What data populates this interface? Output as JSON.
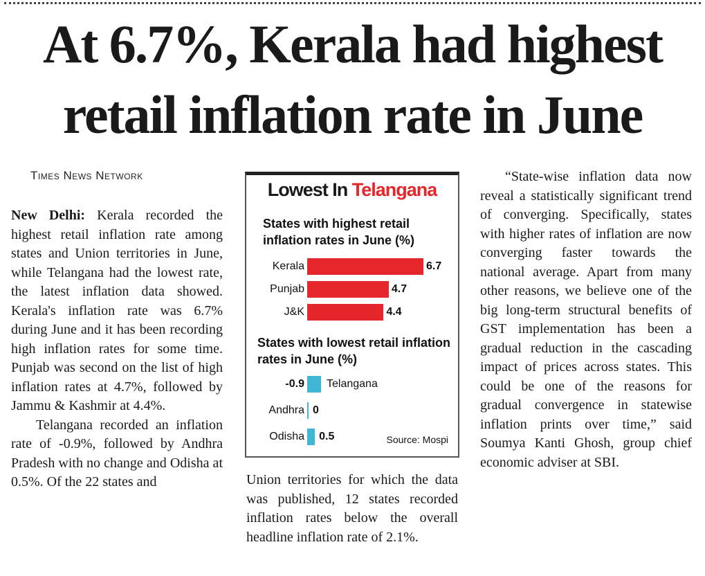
{
  "headline": {
    "line1": "At 6.7%, Kerala had highest",
    "line2": "retail inflation rate in June"
  },
  "byline": "Times News Network",
  "article": {
    "dateline": "New Delhi:",
    "col1_p1": "Kerala recorded the highest retail inflation rate among states and Union territories in June, while Telangana had the lowest rate, the latest inflation data showed. Kerala's inflation rate was 6.7% during June and it has been recording high inflation rates for some time. Punjab was second on the list of high inflation rates at 4.7%, followed by Jammu & Kashmir at 4.4%.",
    "col1_p2": "Telangana recorded an inflation rate of -0.9%, followed by Andhra Pradesh with no change and Odisha at 0.5%. Of the 22 states and",
    "col2_p1": "Union territories for which the data was published, 12 states recorded inflation rates below the overall headline inflation rate of 2.1%.",
    "col3_p1": "“State-wise inflation data now reveal a statistically significant trend of converging. Specifically, states with higher rates of inflation are now converging faster towards the national average. Apart from many other reasons, we believe one of the big long-term structural benefits of GST implementation has been a gradual reduction in the cascading impact of prices across states. This could be one of the reasons for gradual convergence in statewise inflation prints over time,” said Soumya Kanti Ghosh, group chief economic adviser at SBI."
  },
  "chart_data": {
    "type": "bar",
    "title_part1": "Lowest In ",
    "title_part2": "Telangana",
    "source": "Source: Mospi",
    "highest": {
      "subtitle": "States with highest retail inflation rates in June (%)",
      "categories": [
        "Kerala",
        "Punjab",
        "J&K"
      ],
      "values": [
        6.7,
        4.7,
        4.4
      ],
      "labels": [
        "6.7",
        "4.7",
        "4.4"
      ],
      "color": "#e5262b"
    },
    "lowest": {
      "subtitle": "States with lowest retail inflation rates in June (%)",
      "categories": [
        "Telangana",
        "Andhra",
        "Odisha"
      ],
      "values": [
        -0.9,
        0,
        0.5
      ],
      "labels": [
        "-0.9",
        "0",
        "0.5"
      ],
      "color": "#3fb6d3"
    }
  }
}
